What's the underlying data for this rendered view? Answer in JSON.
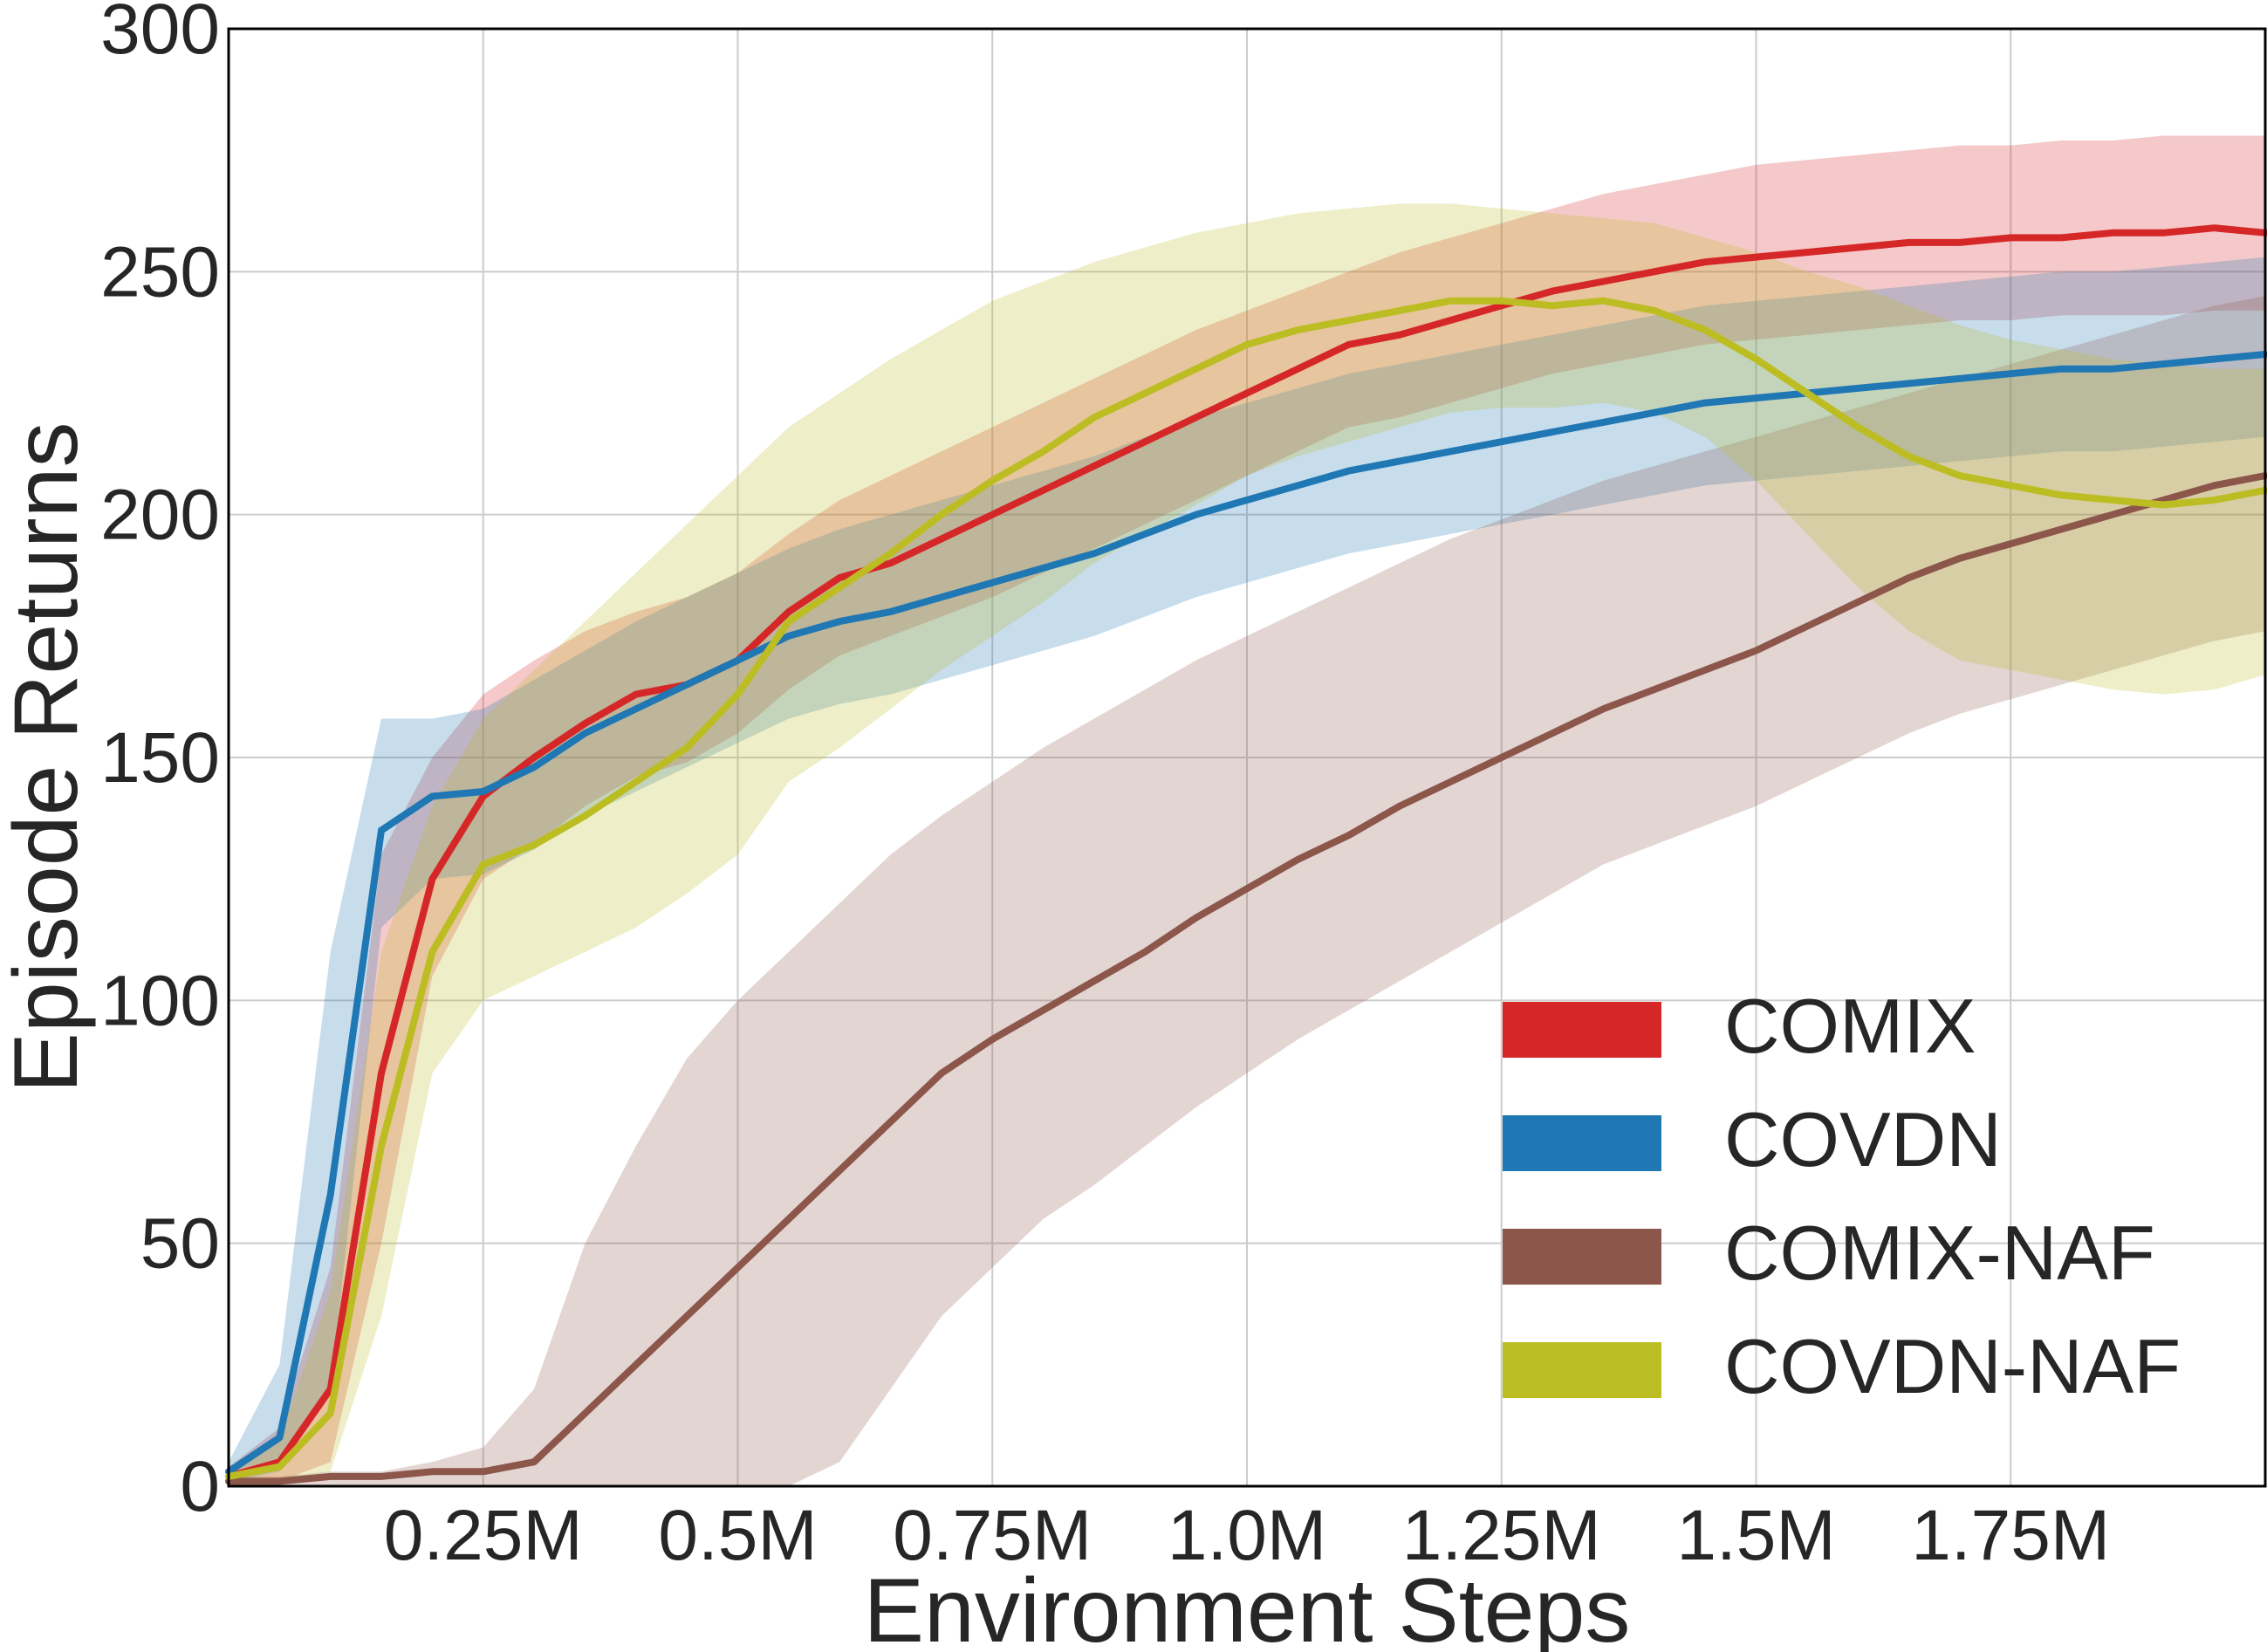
{
  "chart_data": {
    "type": "line",
    "title": "",
    "xlabel": "Environment Steps",
    "ylabel": "Episode Returns",
    "xlim": [
      0,
      2000000
    ],
    "ylim": [
      0,
      300
    ],
    "x_ticks": [
      250000,
      500000,
      750000,
      1000000,
      1250000,
      1500000,
      1750000
    ],
    "x_tick_labels": [
      "0.25M",
      "0.5M",
      "0.75M",
      "1.0M",
      "1.25M",
      "1.5M",
      "1.75M"
    ],
    "y_ticks": [
      0,
      50,
      100,
      150,
      200,
      250,
      300
    ],
    "y_tick_labels": [
      "0",
      "50",
      "100",
      "150",
      "200",
      "250",
      "300"
    ],
    "grid": true,
    "legend_position": "lower-right",
    "series": [
      {
        "name": "COMIX",
        "color": "#d62728",
        "x": [
          0,
          50000,
          100000,
          150000,
          200000,
          250000,
          300000,
          350000,
          400000,
          450000,
          500000,
          550000,
          600000,
          650000,
          700000,
          750000,
          800000,
          850000,
          900000,
          950000,
          1000000,
          1050000,
          1100000,
          1150000,
          1200000,
          1250000,
          1300000,
          1350000,
          1400000,
          1450000,
          1500000,
          1550000,
          1600000,
          1650000,
          1700000,
          1750000,
          1800000,
          1850000,
          1900000,
          1950000,
          2000000
        ],
        "mean": [
          2,
          5,
          20,
          85,
          125,
          142,
          150,
          157,
          163,
          165,
          170,
          180,
          187,
          190,
          195,
          200,
          205,
          210,
          215,
          220,
          225,
          230,
          235,
          237,
          240,
          243,
          246,
          248,
          250,
          252,
          253,
          254,
          255,
          256,
          256,
          257,
          257,
          258,
          258,
          259,
          258
        ],
        "upper": [
          4,
          12,
          45,
          130,
          150,
          163,
          170,
          176,
          180,
          183,
          188,
          196,
          203,
          208,
          213,
          218,
          223,
          228,
          233,
          238,
          242,
          246,
          250,
          254,
          257,
          260,
          263,
          266,
          268,
          270,
          272,
          273,
          274,
          275,
          276,
          276,
          277,
          277,
          278,
          278,
          278
        ],
        "lower": [
          0,
          1,
          5,
          50,
          105,
          125,
          132,
          140,
          146,
          149,
          155,
          164,
          171,
          175,
          179,
          183,
          188,
          193,
          198,
          203,
          208,
          213,
          218,
          220,
          223,
          226,
          229,
          231,
          233,
          235,
          236,
          237,
          238,
          239,
          240,
          240,
          241,
          241,
          241,
          242,
          242
        ]
      },
      {
        "name": "COVDN",
        "color": "#1f77b4",
        "x": [
          0,
          50000,
          100000,
          150000,
          200000,
          250000,
          300000,
          350000,
          400000,
          450000,
          500000,
          550000,
          600000,
          650000,
          700000,
          750000,
          800000,
          850000,
          900000,
          950000,
          1000000,
          1050000,
          1100000,
          1150000,
          1200000,
          1250000,
          1300000,
          1350000,
          1400000,
          1450000,
          1500000,
          1550000,
          1600000,
          1650000,
          1700000,
          1750000,
          1800000,
          1850000,
          1900000,
          1950000,
          2000000
        ],
        "mean": [
          3,
          10,
          60,
          135,
          142,
          143,
          148,
          155,
          160,
          165,
          170,
          175,
          178,
          180,
          183,
          186,
          189,
          192,
          196,
          200,
          203,
          206,
          209,
          211,
          213,
          215,
          217,
          219,
          221,
          223,
          224,
          225,
          226,
          227,
          228,
          229,
          230,
          230,
          231,
          232,
          233
        ],
        "upper": [
          5,
          25,
          110,
          158,
          158,
          160,
          166,
          172,
          178,
          183,
          188,
          193,
          197,
          200,
          203,
          206,
          209,
          212,
          216,
          220,
          223,
          226,
          229,
          231,
          233,
          235,
          237,
          239,
          241,
          243,
          244,
          245,
          246,
          247,
          248,
          249,
          250,
          250,
          251,
          252,
          253
        ],
        "lower": [
          1,
          3,
          20,
          115,
          125,
          126,
          131,
          138,
          143,
          148,
          153,
          158,
          161,
          163,
          166,
          169,
          172,
          175,
          179,
          183,
          186,
          189,
          192,
          194,
          196,
          198,
          200,
          202,
          204,
          206,
          207,
          208,
          209,
          210,
          211,
          212,
          213,
          213,
          214,
          215,
          216
        ]
      },
      {
        "name": "COMIX-NAF",
        "color": "#8c564b",
        "x": [
          0,
          50000,
          100000,
          150000,
          200000,
          250000,
          300000,
          350000,
          400000,
          450000,
          500000,
          550000,
          600000,
          650000,
          700000,
          750000,
          800000,
          850000,
          900000,
          950000,
          1000000,
          1050000,
          1100000,
          1150000,
          1200000,
          1250000,
          1300000,
          1350000,
          1400000,
          1450000,
          1500000,
          1550000,
          1600000,
          1650000,
          1700000,
          1750000,
          1800000,
          1850000,
          1900000,
          1950000,
          2000000
        ],
        "mean": [
          1,
          1,
          2,
          2,
          3,
          3,
          5,
          15,
          25,
          35,
          45,
          55,
          65,
          75,
          85,
          92,
          98,
          104,
          110,
          117,
          123,
          129,
          134,
          140,
          145,
          150,
          155,
          160,
          164,
          168,
          172,
          177,
          182,
          187,
          191,
          194,
          197,
          200,
          203,
          206,
          208
        ],
        "upper": [
          2,
          2,
          3,
          3,
          5,
          8,
          20,
          50,
          70,
          88,
          100,
          110,
          120,
          130,
          138,
          145,
          152,
          158,
          164,
          170,
          175,
          180,
          185,
          190,
          195,
          199,
          203,
          207,
          210,
          213,
          216,
          219,
          222,
          225,
          228,
          231,
          234,
          237,
          240,
          243,
          245
        ],
        "lower": [
          0,
          0,
          0,
          0,
          0,
          0,
          0,
          0,
          0,
          0,
          0,
          0,
          5,
          20,
          35,
          45,
          55,
          62,
          70,
          78,
          85,
          92,
          98,
          104,
          110,
          116,
          122,
          128,
          132,
          136,
          140,
          145,
          150,
          155,
          159,
          162,
          165,
          168,
          171,
          174,
          176
        ]
      },
      {
        "name": "COVDN-NAF",
        "color": "#bcbd22",
        "x": [
          0,
          50000,
          100000,
          150000,
          200000,
          250000,
          300000,
          350000,
          400000,
          450000,
          500000,
          550000,
          600000,
          650000,
          700000,
          750000,
          800000,
          850000,
          900000,
          950000,
          1000000,
          1050000,
          1100000,
          1150000,
          1200000,
          1250000,
          1300000,
          1350000,
          1400000,
          1450000,
          1500000,
          1550000,
          1600000,
          1650000,
          1700000,
          1750000,
          1800000,
          1850000,
          1900000,
          1950000,
          2000000
        ],
        "mean": [
          2,
          4,
          15,
          70,
          110,
          128,
          132,
          138,
          145,
          152,
          163,
          178,
          185,
          192,
          200,
          207,
          213,
          220,
          225,
          230,
          235,
          238,
          240,
          242,
          244,
          244,
          243,
          244,
          242,
          238,
          232,
          225,
          218,
          212,
          208,
          206,
          204,
          203,
          202,
          203,
          205
        ],
        "upper": [
          4,
          10,
          40,
          110,
          140,
          158,
          168,
          178,
          188,
          198,
          208,
          218,
          225,
          232,
          238,
          244,
          248,
          252,
          255,
          258,
          260,
          262,
          263,
          264,
          264,
          263,
          262,
          261,
          260,
          257,
          254,
          250,
          247,
          243,
          239,
          236,
          234,
          232,
          231,
          230,
          230
        ],
        "lower": [
          0,
          1,
          3,
          35,
          85,
          100,
          105,
          110,
          115,
          122,
          130,
          145,
          152,
          160,
          168,
          175,
          182,
          190,
          196,
          202,
          208,
          212,
          215,
          218,
          221,
          222,
          222,
          223,
          221,
          216,
          207,
          196,
          185,
          176,
          170,
          168,
          166,
          164,
          163,
          164,
          167
        ]
      }
    ]
  }
}
